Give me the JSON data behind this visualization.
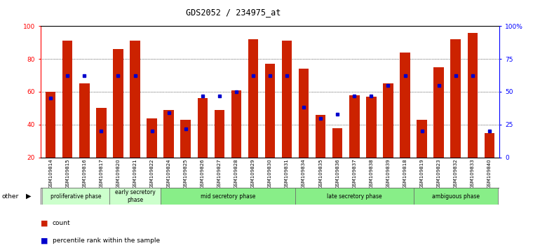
{
  "title": "GDS2052 / 234975_at",
  "samples": [
    "GSM109814",
    "GSM109815",
    "GSM109816",
    "GSM109817",
    "GSM109820",
    "GSM109821",
    "GSM109822",
    "GSM109824",
    "GSM109825",
    "GSM109826",
    "GSM109827",
    "GSM109828",
    "GSM109829",
    "GSM109830",
    "GSM109831",
    "GSM109834",
    "GSM109835",
    "GSM109836",
    "GSM109837",
    "GSM109838",
    "GSM109839",
    "GSM109818",
    "GSM109819",
    "GSM109823",
    "GSM109832",
    "GSM109833",
    "GSM109840"
  ],
  "count_values": [
    60,
    91,
    65,
    50,
    86,
    91,
    44,
    49,
    43,
    56,
    49,
    61,
    92,
    77,
    91,
    74,
    46,
    38,
    58,
    57,
    65,
    84,
    43,
    75,
    92,
    96,
    35
  ],
  "percentile_values": [
    45,
    62,
    62,
    20,
    62,
    62,
    20,
    34,
    22,
    47,
    47,
    50,
    62,
    62,
    62,
    38,
    30,
    33,
    47,
    47,
    55,
    62,
    20,
    55,
    62,
    62,
    20
  ],
  "phase_configs": [
    {
      "name": "proliferative phase",
      "start": 0,
      "end": 3,
      "color": "#ccffcc"
    },
    {
      "name": "early secretory\nphase",
      "start": 4,
      "end": 6,
      "color": "#ccffcc"
    },
    {
      "name": "mid secretory phase",
      "start": 7,
      "end": 14,
      "color": "#88ee88"
    },
    {
      "name": "late secretory phase",
      "start": 15,
      "end": 21,
      "color": "#88ee88"
    },
    {
      "name": "ambiguous phase",
      "start": 22,
      "end": 26,
      "color": "#88ee88"
    }
  ],
  "bar_color": "#cc2200",
  "dot_color": "#0000cc",
  "yticks_left": [
    20,
    40,
    60,
    80,
    100
  ],
  "right_tick_positions": [
    20,
    40,
    60,
    80,
    100
  ],
  "right_tick_labels": [
    "0",
    "25",
    "50",
    "75",
    "100%"
  ]
}
